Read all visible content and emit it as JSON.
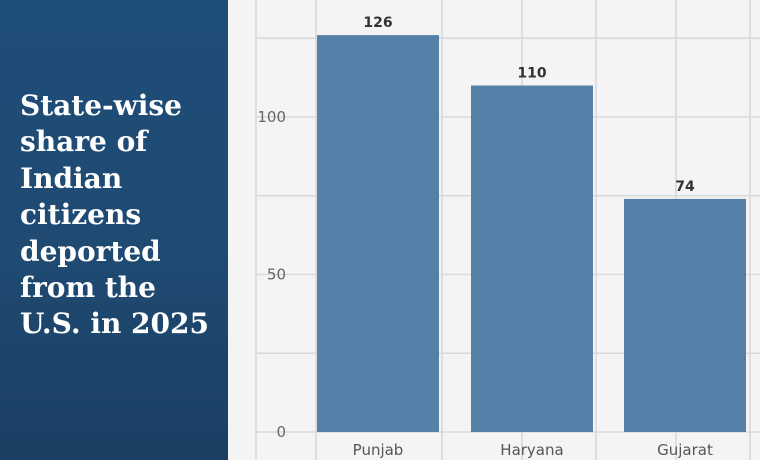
{
  "title": "State-wise share of Indian citizens deported from the U.S. in 2025",
  "colors": {
    "panel_bg": "#1f4a72",
    "bar": "#5580a8",
    "grid": "#d9d9d9",
    "background": "#f4f4f5"
  },
  "chart_data": {
    "type": "bar",
    "categories": [
      "Punjab",
      "Haryana",
      "Gujarat"
    ],
    "values": [
      126,
      110,
      74
    ],
    "data_labels": [
      "126",
      "110",
      "74"
    ],
    "title": "State-wise share of Indian citizens deported from the U.S. in 2025",
    "xlabel": "",
    "ylabel": "",
    "ylim": [
      0,
      135
    ],
    "yticks": [
      0,
      50,
      100
    ],
    "ytick_labels": [
      "0",
      "50",
      "100"
    ],
    "grid": true,
    "legend": "none"
  }
}
